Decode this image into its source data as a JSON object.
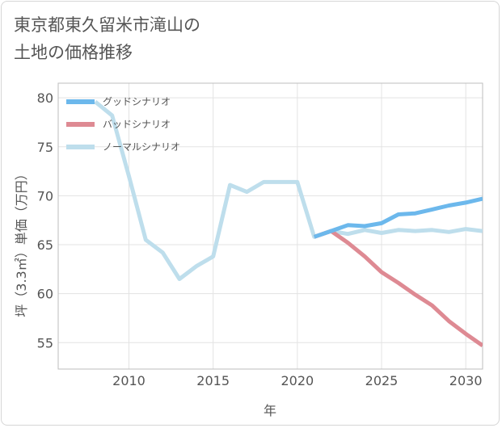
{
  "title_line1": "東京都東久留米市滝山の",
  "title_line2": "土地の価格推移",
  "chart_data": {
    "type": "line",
    "xlabel": "年",
    "ylabel": "坪（3.3㎡）単価（万円）",
    "xlim": [
      2005.8,
      2031
    ],
    "ylim": [
      52.3,
      81.5
    ],
    "xticks": [
      2010,
      2015,
      2020,
      2025,
      2030
    ],
    "yticks": [
      55,
      60,
      65,
      70,
      75,
      80
    ],
    "legend_position": "top-left",
    "grid": true,
    "series": [
      {
        "name": "グッドシナリオ",
        "color": "#6cb8ec",
        "x": [
          2021,
          2022,
          2023,
          2024,
          2025,
          2026,
          2027,
          2028,
          2029,
          2030,
          2031
        ],
        "y": [
          65.8,
          66.4,
          67.0,
          66.9,
          67.2,
          68.1,
          68.2,
          68.6,
          69.0,
          69.3,
          69.7
        ]
      },
      {
        "name": "バッドシナリオ",
        "color": "#de8a93",
        "x": [
          2021,
          2022,
          2023,
          2024,
          2025,
          2026,
          2027,
          2028,
          2029,
          2030,
          2031
        ],
        "y": [
          65.8,
          66.4,
          65.2,
          63.8,
          62.2,
          61.1,
          59.9,
          58.8,
          57.2,
          55.9,
          54.7
        ]
      },
      {
        "name": "ノーマルシナリオ",
        "color": "#bedeec",
        "x": [
          2008,
          2009,
          2010,
          2011,
          2012,
          2013,
          2014,
          2015,
          2016,
          2017,
          2018,
          2019,
          2020,
          2021,
          2022,
          2023,
          2024,
          2025,
          2026,
          2027,
          2028,
          2029,
          2030,
          2031
        ],
        "y": [
          79.6,
          78.2,
          72.0,
          65.5,
          64.2,
          61.5,
          62.8,
          63.8,
          71.1,
          70.4,
          71.4,
          71.4,
          71.4,
          65.8,
          66.4,
          66.1,
          66.5,
          66.2,
          66.5,
          66.4,
          66.5,
          66.3,
          66.6,
          66.4
        ]
      }
    ]
  }
}
